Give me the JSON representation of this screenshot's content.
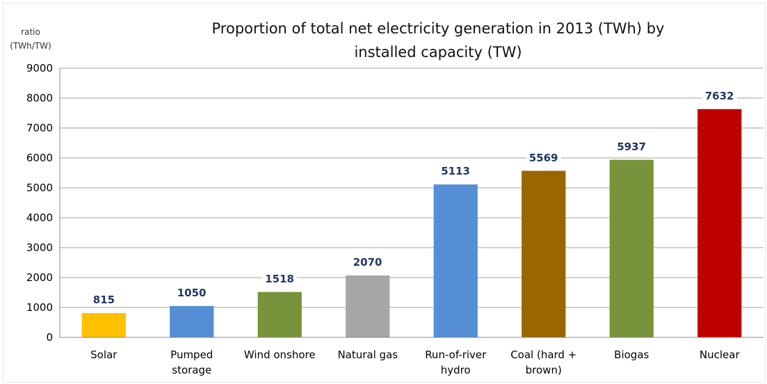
{
  "chart_data": {
    "type": "bar",
    "title": "Proportion of  total net electricity generation in 2013 (TWh) by installed capacity (TW)",
    "y_label": "ratio (TWh/TW)",
    "categories": [
      "Solar",
      "Pumped storage",
      "Wind onshore",
      "Natural gas",
      "Run-of-river hydro",
      "Coal (hard + brown)",
      "Biogas",
      "Nuclear"
    ],
    "values": [
      815,
      1050,
      1518,
      2070,
      5113,
      5569,
      5937,
      7632
    ],
    "colors": [
      "#ffc000",
      "#558ed5",
      "#77933c",
      "#a6a6a6",
      "#558ed5",
      "#996600",
      "#77933c",
      "#c00000"
    ],
    "ylim": [
      0,
      9000
    ],
    "yticks": [
      0,
      1000,
      2000,
      3000,
      4000,
      5000,
      6000,
      7000,
      8000,
      9000
    ],
    "grid": true
  }
}
